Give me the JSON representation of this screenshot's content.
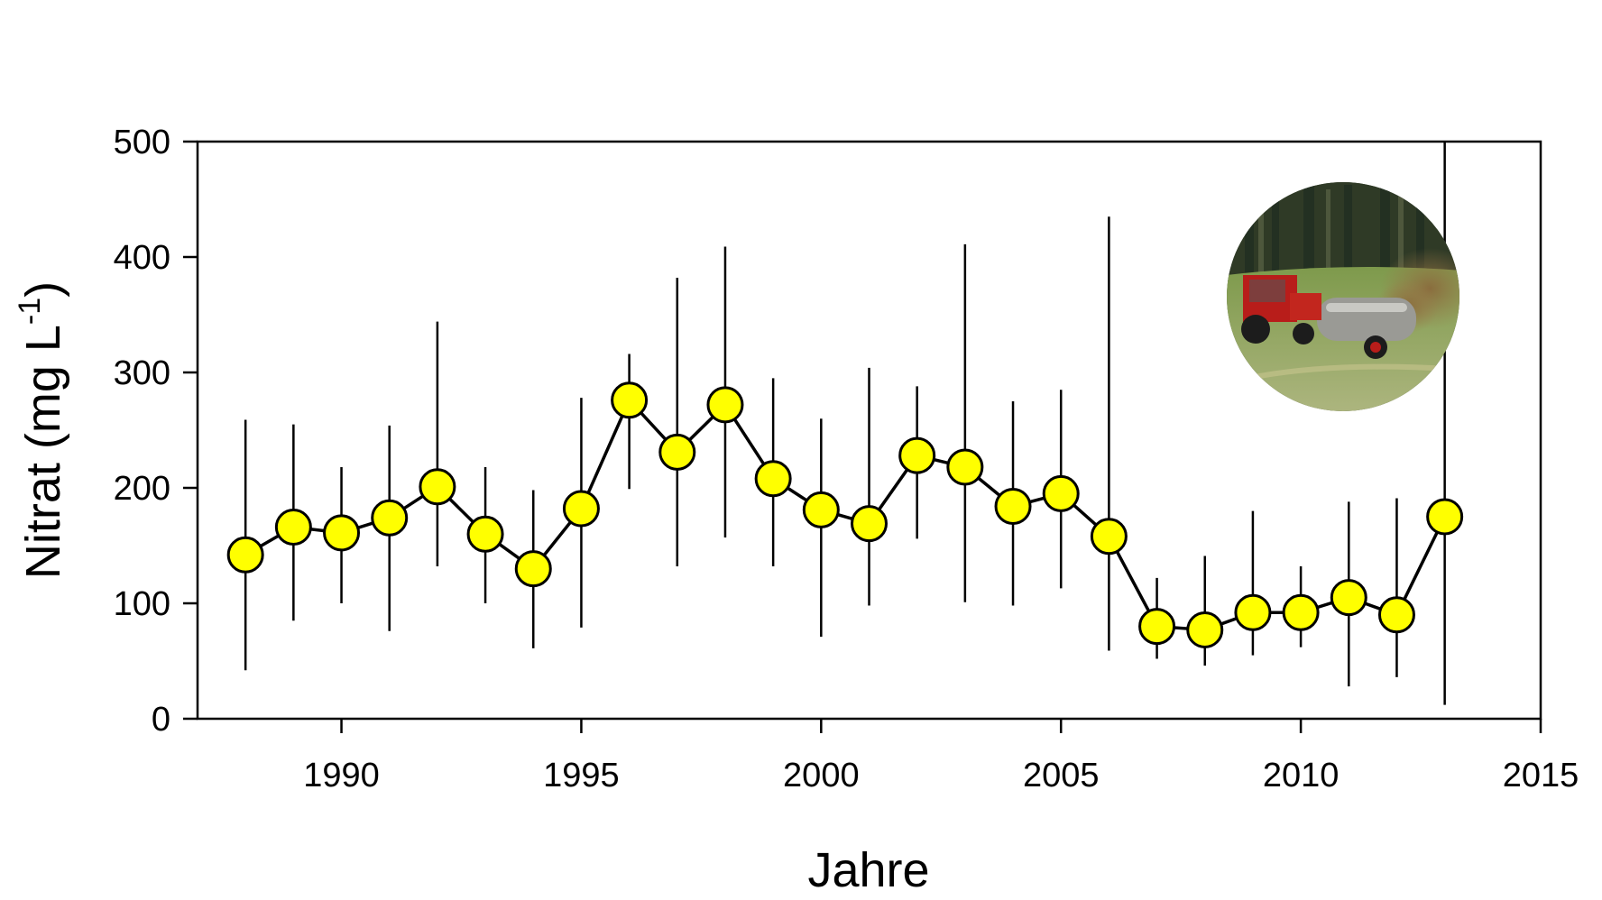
{
  "chart_data": {
    "type": "line",
    "xlabel": "Jahre",
    "ylabel": "Nitrat (mg L",
    "ylabel_superscript": "-1",
    "ylabel_suffix": ")",
    "xlim": [
      1987,
      2015
    ],
    "ylim": [
      0,
      500
    ],
    "x_ticks": [
      1990,
      1995,
      2000,
      2005,
      2010,
      2015
    ],
    "y_ticks": [
      0,
      100,
      200,
      300,
      400,
      500
    ],
    "grid": false,
    "legend": "none",
    "marker_color": "#ffff00",
    "marker_edge_color": "#000000",
    "line_color": "#000000",
    "series": [
      {
        "x": [
          1988,
          1989,
          1990,
          1991,
          1992,
          1993,
          1994,
          1995,
          1996,
          1997,
          1998,
          1999,
          2000,
          2001,
          2002,
          2003,
          2004,
          2005,
          2006,
          2007,
          2008,
          2009,
          2010,
          2011,
          2012,
          2013
        ],
        "values": [
          142,
          166,
          161,
          174,
          201,
          160,
          130,
          182,
          276,
          231,
          272,
          208,
          181,
          169,
          228,
          218,
          184,
          195,
          158,
          80,
          77,
          92,
          92,
          105,
          90,
          175
        ],
        "err_low": [
          42,
          85,
          100,
          76,
          132,
          100,
          61,
          79,
          199,
          132,
          157,
          132,
          71,
          98,
          156,
          101,
          98,
          113,
          59,
          52,
          46,
          55,
          62,
          28,
          36,
          12
        ],
        "err_high": [
          259,
          255,
          218,
          254,
          344,
          218,
          198,
          278,
          316,
          382,
          409,
          295,
          260,
          304,
          288,
          411,
          275,
          285,
          435,
          122,
          141,
          180,
          132,
          188,
          191,
          500
        ]
      }
    ],
    "inset_image": "tractor-slurry-spreader-photo"
  }
}
